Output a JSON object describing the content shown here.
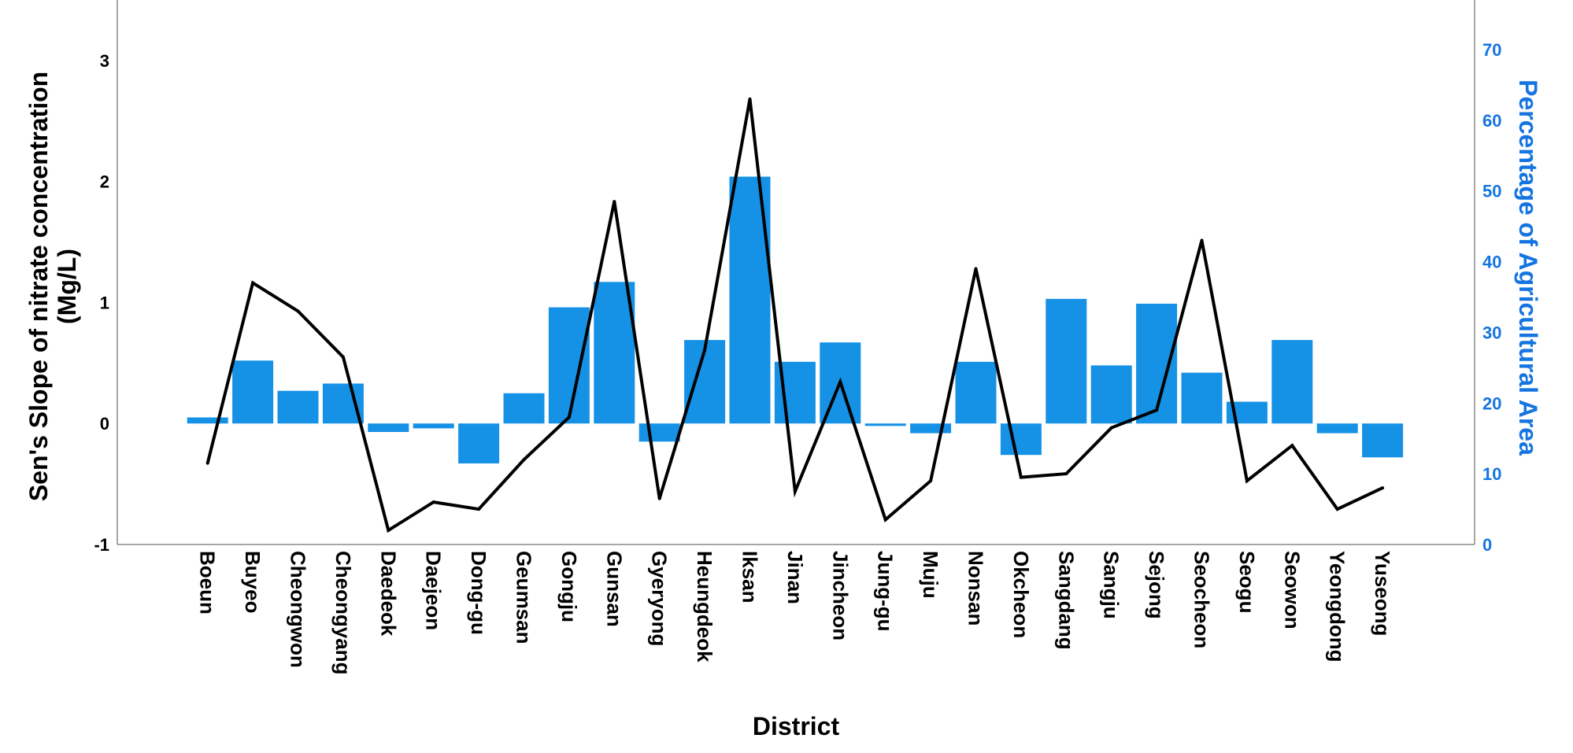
{
  "chart_data": {
    "type": "bar",
    "xlabel": "District",
    "ylabel_left": [
      "Sen's Slope of nitrate concentration",
      "(Mg/L)"
    ],
    "ylabel_right": "Percentage of Agricultural Area",
    "ylim_left": [
      -1,
      3.5
    ],
    "yticks_left": [
      "-1",
      "0",
      "1",
      "2",
      "3"
    ],
    "ylim_right": [
      0,
      77
    ],
    "yticks_right": [
      "0",
      "10",
      "20",
      "30",
      "40",
      "50",
      "60",
      "70"
    ],
    "bar_color": "#1591e6",
    "line_color": "#000000",
    "right_axis_color": "#1575e0",
    "categories": [
      "Boeun",
      "Buyeo",
      "Cheongwon",
      "Cheongyang",
      "Daedeok",
      "Daejeon",
      "Dong-gu",
      "Geumsan",
      "Gongju",
      "Gunsan",
      "Gyeryong",
      "Heungdeok",
      "Iksan",
      "Jinan",
      "Jincheon",
      "Jung-gu",
      "Muju",
      "Nonsan",
      "Okcheon",
      "Sangdang",
      "Sangju",
      "Sejong",
      "Seocheon",
      "Seogu",
      "Seowon",
      "Yeongdong",
      "Yuseong"
    ],
    "series": [
      {
        "axis": "left",
        "kind": "bar",
        "values": [
          0.05,
          0.52,
          0.27,
          0.33,
          -0.07,
          -0.04,
          -0.33,
          0.25,
          0.96,
          1.17,
          -0.15,
          0.69,
          2.04,
          0.51,
          0.67,
          -0.02,
          -0.08,
          0.51,
          -0.26,
          1.03,
          0.48,
          0.99,
          0.42,
          0.18,
          0.69,
          -0.08,
          -0.28
        ]
      },
      {
        "axis": "right",
        "kind": "line",
        "values": [
          11.5,
          37,
          33,
          26.5,
          2,
          6,
          5,
          12,
          18,
          48.5,
          6.5,
          27.5,
          63,
          7.5,
          23,
          3.5,
          9,
          39,
          9.5,
          10,
          16.5,
          19,
          43,
          9,
          14,
          5,
          8
        ]
      }
    ]
  }
}
